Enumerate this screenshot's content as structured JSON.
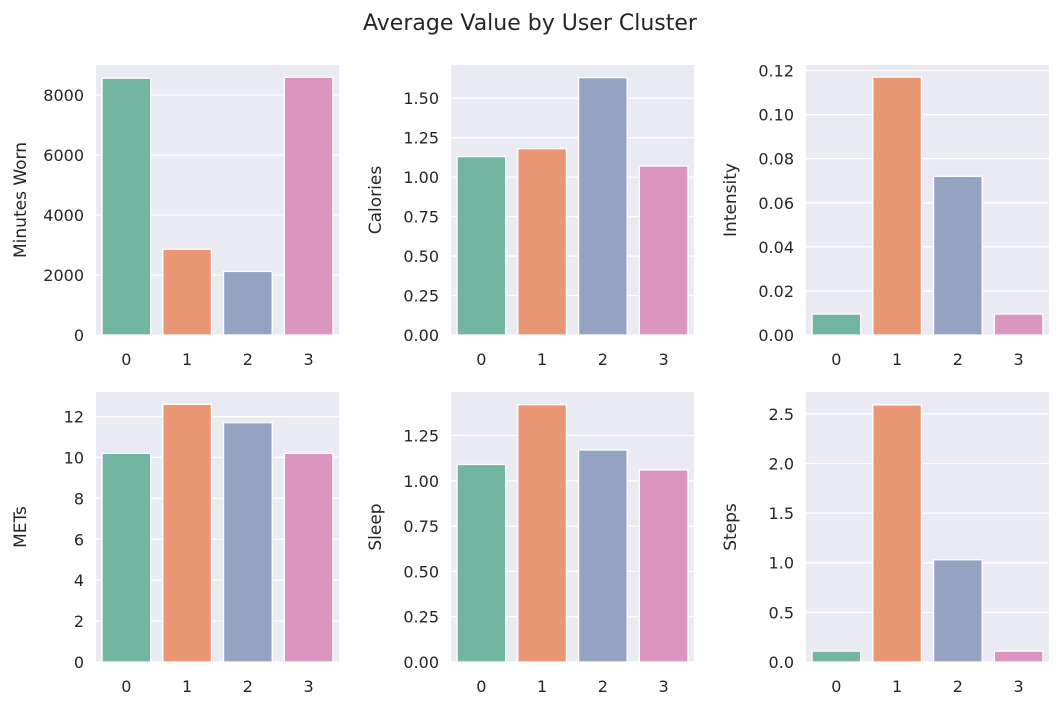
{
  "title": "Average Value by User Cluster",
  "style": {
    "plot_background": "#eaeaf2",
    "grid_color": "#ffffff",
    "bar_edge": "#ffffff",
    "palette": [
      "#72b6a1",
      "#e99675",
      "#95a3c3",
      "#db96c0"
    ]
  },
  "chart_data": [
    {
      "type": "bar",
      "categories": [
        "0",
        "1",
        "2",
        "3"
      ],
      "values": [
        8560,
        2860,
        2120,
        8590
      ],
      "ylabel": "Minutes Worn",
      "ylim": [
        0,
        9000
      ],
      "yticks": [
        0,
        2000,
        4000,
        6000,
        8000
      ],
      "ytick_labels": [
        "0",
        "2000",
        "4000",
        "6000",
        "8000"
      ]
    },
    {
      "type": "bar",
      "categories": [
        "0",
        "1",
        "2",
        "3"
      ],
      "values": [
        1.13,
        1.18,
        1.63,
        1.07
      ],
      "ylabel": "Calories",
      "ylim": [
        0,
        1.71
      ],
      "yticks": [
        0,
        0.25,
        0.5,
        0.75,
        1.0,
        1.25,
        1.5
      ],
      "ytick_labels": [
        "0.00",
        "0.25",
        "0.50",
        "0.75",
        "1.00",
        "1.25",
        "1.50"
      ]
    },
    {
      "type": "bar",
      "categories": [
        "0",
        "1",
        "2",
        "3"
      ],
      "values": [
        0.0095,
        0.117,
        0.072,
        0.0095
      ],
      "ylabel": "Intensity",
      "ylim": [
        0,
        0.1225
      ],
      "yticks": [
        0,
        0.02,
        0.04,
        0.06,
        0.08,
        0.1,
        0.12
      ],
      "ytick_labels": [
        "0.00",
        "0.02",
        "0.04",
        "0.06",
        "0.08",
        "0.10",
        "0.12"
      ]
    },
    {
      "type": "bar",
      "categories": [
        "0",
        "1",
        "2",
        "3"
      ],
      "values": [
        10.2,
        12.6,
        11.7,
        10.2
      ],
      "ylabel": "METs",
      "ylim": [
        0,
        13.2
      ],
      "yticks": [
        0,
        2,
        4,
        6,
        8,
        10,
        12
      ],
      "ytick_labels": [
        "0",
        "2",
        "4",
        "6",
        "8",
        "10",
        "12"
      ]
    },
    {
      "type": "bar",
      "categories": [
        "0",
        "1",
        "2",
        "3"
      ],
      "values": [
        1.09,
        1.42,
        1.17,
        1.06
      ],
      "ylabel": "Sleep",
      "ylim": [
        0,
        1.49
      ],
      "yticks": [
        0,
        0.25,
        0.5,
        0.75,
        1.0,
        1.25
      ],
      "ytick_labels": [
        "0.00",
        "0.25",
        "0.50",
        "0.75",
        "1.00",
        "1.25"
      ]
    },
    {
      "type": "bar",
      "categories": [
        "0",
        "1",
        "2",
        "3"
      ],
      "values": [
        0.11,
        2.59,
        1.03,
        0.11
      ],
      "ylabel": "Steps",
      "ylim": [
        0,
        2.72
      ],
      "yticks": [
        0,
        0.5,
        1.0,
        1.5,
        2.0,
        2.5
      ],
      "ytick_labels": [
        "0.0",
        "0.5",
        "1.0",
        "1.5",
        "2.0",
        "2.5"
      ]
    }
  ]
}
